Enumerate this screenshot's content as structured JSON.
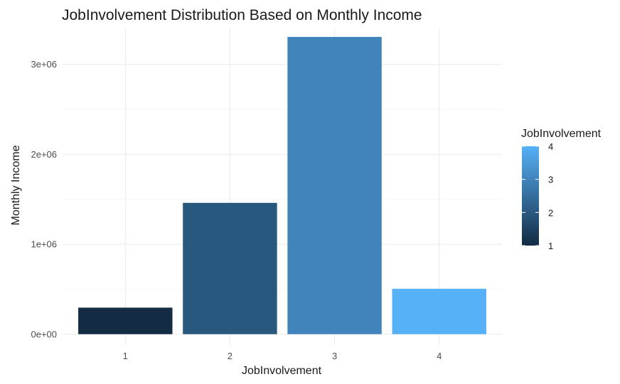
{
  "chart_data": {
    "type": "bar",
    "title": "JobInvolvement Distribution Based on Monthly Income",
    "xlabel": "JobInvolvement",
    "ylabel": "Monthly Income",
    "categories": [
      "1",
      "2",
      "3",
      "4"
    ],
    "values": [
      295000,
      1460000,
      3305000,
      505000
    ],
    "ylim": [
      -120000,
      3400000
    ],
    "yticks": [
      0,
      1000000,
      2000000,
      3000000
    ],
    "ytick_labels": [
      "0e+00",
      "1e+06",
      "2e+06",
      "3e+06"
    ],
    "grid": true,
    "legend": {
      "title": "JobInvolvement",
      "position": "right",
      "type": "colorbar",
      "range": [
        1,
        4
      ],
      "ticks": [
        "1",
        "2",
        "3",
        "4"
      ],
      "color_low": "#132B43",
      "color_high": "#56B1F7"
    }
  }
}
